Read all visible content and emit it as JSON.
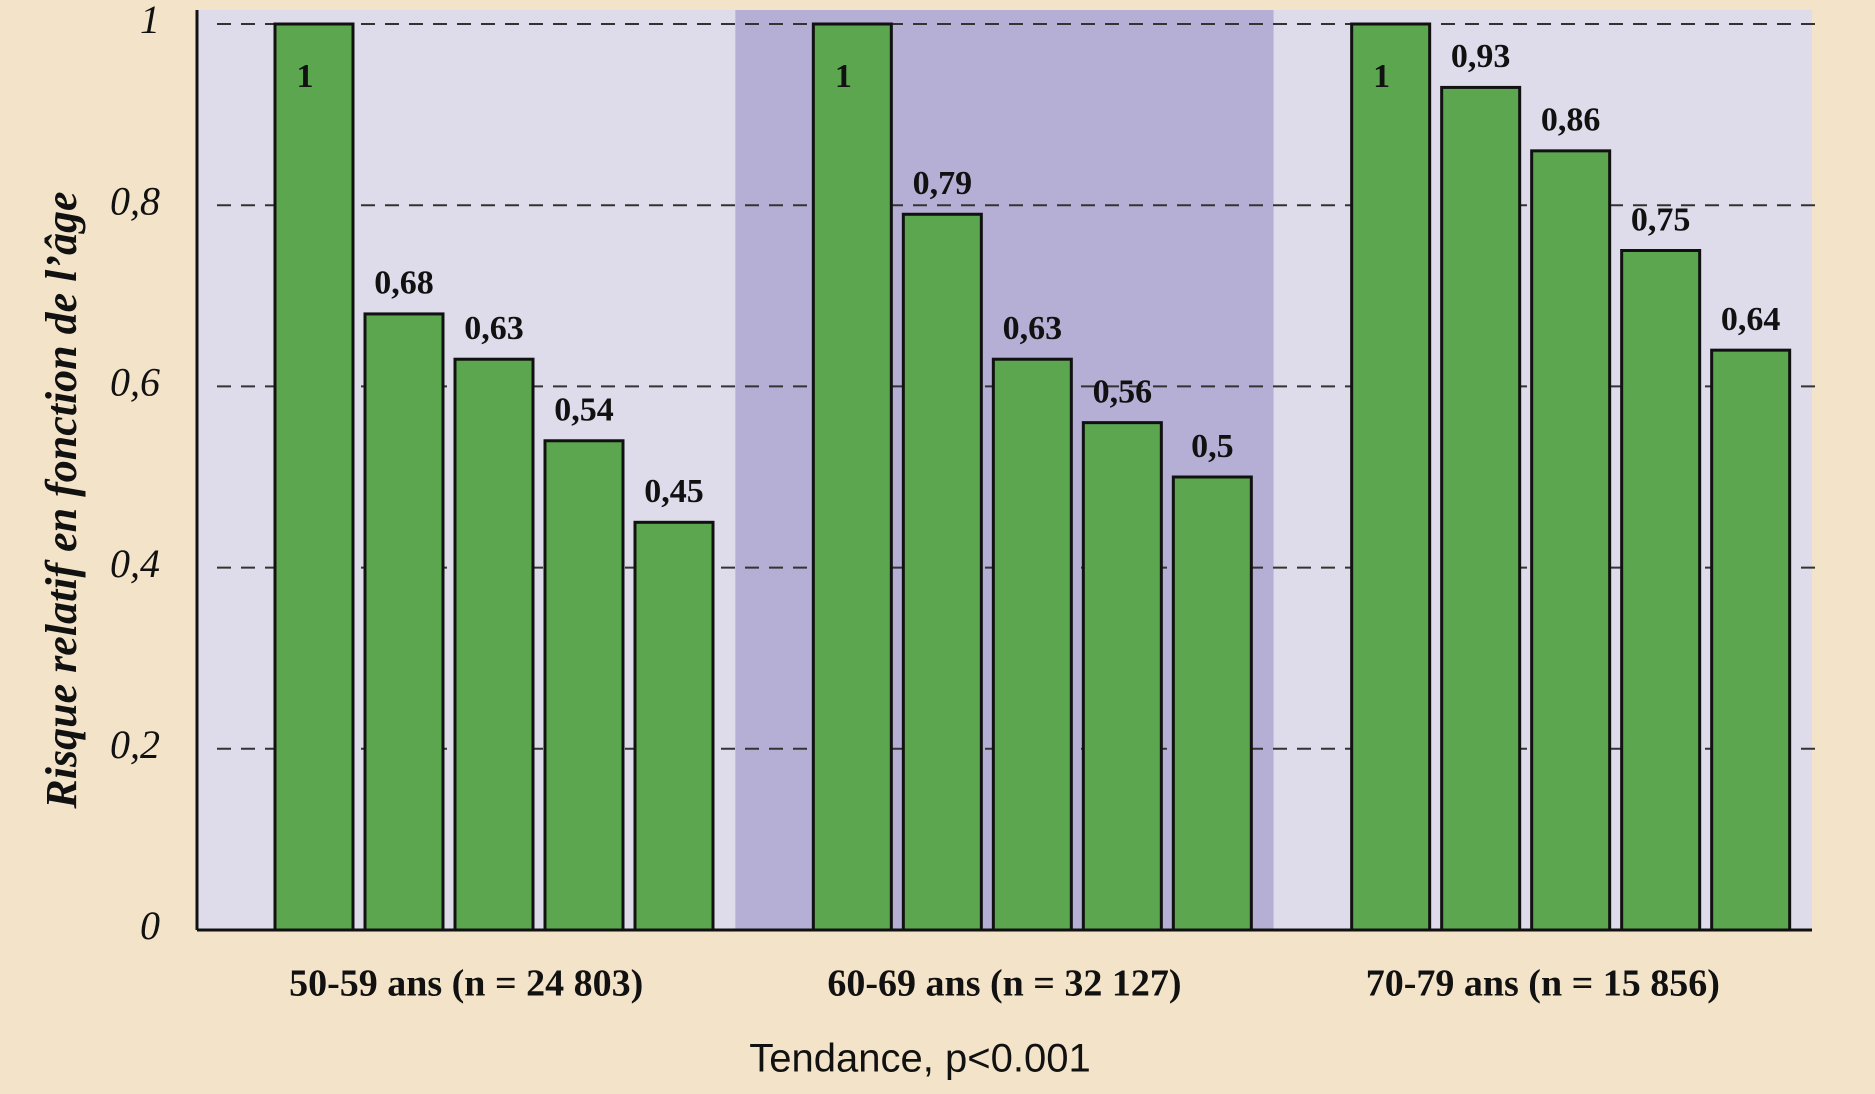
{
  "chart_data": {
    "type": "grouped-bar",
    "y_label": "Risque relatif en fonction de l’âge",
    "x_label": "Tendance, p<0.001",
    "color": "#5ba64f",
    "panel_colors": [
      "#dedbea",
      "#b6afd5",
      "#dedbea"
    ],
    "ylim": [
      0,
      1
    ],
    "yticks": [
      0,
      {
        "value": 0.2,
        "label": "0,2"
      },
      {
        "value": 0.4,
        "label": "0,4"
      },
      {
        "value": 0.6,
        "label": "0,6"
      },
      {
        "value": 0.8,
        "label": "0,8"
      },
      1
    ],
    "grid": true,
    "groups": [
      {
        "label": "50-59 ans (n = 24 803)",
        "values": [
          1,
          0.68,
          0.63,
          0.54,
          0.45
        ],
        "value_labels": [
          "1",
          "0,68",
          "0,63",
          "0,54",
          "0,45"
        ]
      },
      {
        "label": "60-69 ans (n = 32 127)",
        "values": [
          1,
          0.79,
          0.63,
          0.56,
          0.5
        ],
        "value_labels": [
          "1",
          "0,79",
          "0,63",
          "0,56",
          "0,5"
        ]
      },
      {
        "label": "70-79 ans (n = 15 856)",
        "values": [
          1,
          0.93,
          0.86,
          0.75,
          0.64
        ],
        "value_labels": [
          "1",
          "0,93",
          "0,86",
          "0,75",
          "0,64"
        ]
      }
    ]
  }
}
